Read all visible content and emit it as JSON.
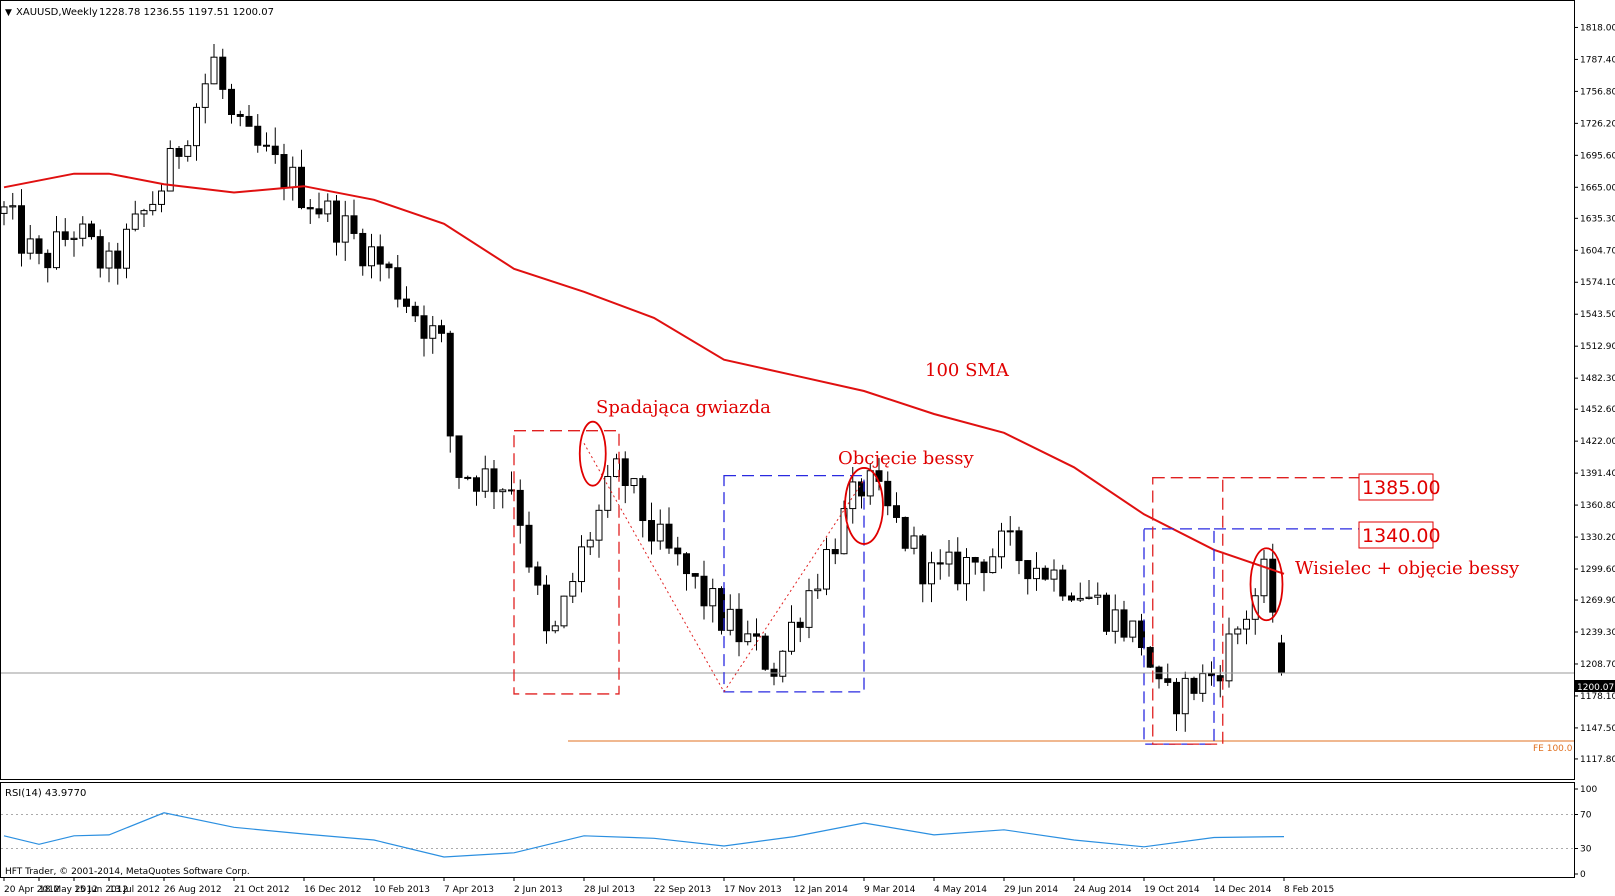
{
  "window": {
    "symbol_header": "XAUUSD,Weekly",
    "ohlc_header": "1228.78 1236.55 1197.51 1200.07",
    "close_marker_label": "1200.07",
    "copyright": "HFT Trader, © 2001-2014, MetaQuotes Software Corp."
  },
  "colors": {
    "sma": "#e01010",
    "annotation": "#e00000",
    "fib_line": "#e07020",
    "blue_dash": "#2a2ae0",
    "red_dash": "#e02020",
    "rsi_line": "#2b8fe0",
    "level_box_border": "#e00000"
  },
  "chart_data": [
    {
      "type": "candlestick",
      "title": "XAUUSD,Weekly",
      "y_ticks": [
        "1818.00",
        "1787.40",
        "1756.80",
        "1726.20",
        "1695.60",
        "1665.00",
        "1635.30",
        "1604.70",
        "1574.10",
        "1543.50",
        "1512.90",
        "1482.30",
        "1452.60",
        "1422.00",
        "1391.40",
        "1360.80",
        "1330.20",
        "1299.60",
        "1269.90",
        "1239.30",
        "1208.70",
        "1178.10",
        "1147.50",
        "1117.80"
      ],
      "ylim": [
        1112,
        1828
      ],
      "x_ticks": [
        "20 Apr 2012",
        "18 May 2012",
        "15 Jun 2012",
        "13 Jul 2012",
        "26 Aug 2012",
        "21 Oct 2012",
        "16 Dec 2012",
        "10 Feb 2013",
        "7 Apr 2013",
        "2 Jun 2013",
        "28 Jul 2013",
        "22 Sep 2013",
        "17 Nov 2013",
        "12 Jan 2014",
        "9 Mar 2014",
        "4 May 2014",
        "29 Jun 2014",
        "24 Aug 2014",
        "19 Oct 2014",
        "14 Dec 2014",
        "8 Feb 2015"
      ],
      "grid": false,
      "bar_period": "weekly",
      "key_closes": [
        {
          "date": "20 Apr 2012",
          "close": 1640
        },
        {
          "date": "18 May 2012",
          "close": 1590
        },
        {
          "date": "15 Jun 2012",
          "close": 1625
        },
        {
          "date": "13 Jul 2012",
          "close": 1585
        },
        {
          "date": "26 Aug 2012",
          "close": 1670
        },
        {
          "date": "5 Oct 2012",
          "close": 1785
        },
        {
          "date": "21 Oct 2012",
          "close": 1720
        },
        {
          "date": "16 Dec 2012",
          "close": 1660
        },
        {
          "date": "10 Feb 2013",
          "close": 1600
        },
        {
          "date": "7 Apr 2013",
          "close": 1510
        },
        {
          "date": "14 Apr 2013",
          "close": 1395
        },
        {
          "date": "2 Jun 2013",
          "close": 1380
        },
        {
          "date": "30 Jun 2013",
          "close": 1220
        },
        {
          "date": "28 Jul 2013",
          "close": 1320
        },
        {
          "date": "25 Aug 2013",
          "close": 1395
        },
        {
          "date": "22 Sep 2013",
          "close": 1330
        },
        {
          "date": "17 Nov 2013",
          "close": 1250
        },
        {
          "date": "29 Dec 2013",
          "close": 1205
        },
        {
          "date": "12 Jan 2014",
          "close": 1250
        },
        {
          "date": "9 Mar 2014",
          "close": 1385
        },
        {
          "date": "4 May 2014",
          "close": 1290
        },
        {
          "date": "29 Jun 2014",
          "close": 1320
        },
        {
          "date": "24 Aug 2014",
          "close": 1285
        },
        {
          "date": "19 Oct 2014",
          "close": 1230
        },
        {
          "date": "2 Nov 2014",
          "close": 1170
        },
        {
          "date": "14 Dec 2014",
          "close": 1200
        },
        {
          "date": "25 Jan 2015",
          "close": 1295
        },
        {
          "date": "8 Feb 2015",
          "close": 1200.07
        }
      ],
      "last_bar": {
        "open": 1228.78,
        "high": 1236.55,
        "low": 1197.51,
        "close": 1200.07
      },
      "sma_100": {
        "label": "100 SMA",
        "points": [
          {
            "date": "20 Apr 2012",
            "value": 1665
          },
          {
            "date": "15 Jun 2012",
            "value": 1678
          },
          {
            "date": "13 Jul 2012",
            "value": 1678
          },
          {
            "date": "26 Aug 2012",
            "value": 1668
          },
          {
            "date": "21 Oct 2012",
            "value": 1660
          },
          {
            "date": "16 Dec 2012",
            "value": 1666
          },
          {
            "date": "10 Feb 2013",
            "value": 1653
          },
          {
            "date": "7 Apr 2013",
            "value": 1630
          },
          {
            "date": "2 Jun 2013",
            "value": 1587
          },
          {
            "date": "28 Jul 2013",
            "value": 1565
          },
          {
            "date": "22 Sep 2013",
            "value": 1540
          },
          {
            "date": "17 Nov 2013",
            "value": 1500
          },
          {
            "date": "12 Jan 2014",
            "value": 1485
          },
          {
            "date": "9 Mar 2014",
            "value": 1470
          },
          {
            "date": "4 May 2014",
            "value": 1448
          },
          {
            "date": "29 Jun 2014",
            "value": 1430
          },
          {
            "date": "24 Aug 2014",
            "value": 1397
          },
          {
            "date": "19 Oct 2014",
            "value": 1352
          },
          {
            "date": "14 Dec 2014",
            "value": 1318
          },
          {
            "date": "8 Feb 2015",
            "value": 1295
          }
        ]
      },
      "horizontal_line": {
        "label": "FE 100.0",
        "value": 1135
      },
      "level_labels": [
        "1385.00",
        "1340.00"
      ],
      "annotations": [
        {
          "text": "Spadająca gwiazda"
        },
        {
          "text": "Obcjęcie bessy"
        },
        {
          "text": "100 SMA"
        },
        {
          "text": "Wisielec + objęcie bessy"
        }
      ]
    },
    {
      "type": "line",
      "title": "RSI(14) 43.9770",
      "y_ticks": [
        "100",
        "70",
        "30",
        "0"
      ],
      "ylim": [
        0,
        100
      ],
      "levels": [
        70,
        30
      ],
      "series": [
        {
          "name": "RSI(14)",
          "values": [
            {
              "date": "20 Apr 2012",
              "value": 45
            },
            {
              "date": "18 May 2012",
              "value": 35
            },
            {
              "date": "15 Jun 2012",
              "value": 45
            },
            {
              "date": "13 Jul 2012",
              "value": 46
            },
            {
              "date": "26 Aug 2012",
              "value": 72
            },
            {
              "date": "21 Oct 2012",
              "value": 55
            },
            {
              "date": "16 Dec 2012",
              "value": 47
            },
            {
              "date": "10 Feb 2013",
              "value": 40
            },
            {
              "date": "7 Apr 2013",
              "value": 20
            },
            {
              "date": "2 Jun 2013",
              "value": 25
            },
            {
              "date": "28 Jul 2013",
              "value": 45
            },
            {
              "date": "22 Sep 2013",
              "value": 42
            },
            {
              "date": "17 Nov 2013",
              "value": 33
            },
            {
              "date": "12 Jan 2014",
              "value": 44
            },
            {
              "date": "9 Mar 2014",
              "value": 60
            },
            {
              "date": "4 May 2014",
              "value": 46
            },
            {
              "date": "29 Jun 2014",
              "value": 52
            },
            {
              "date": "24 Aug 2014",
              "value": 40
            },
            {
              "date": "19 Oct 2014",
              "value": 32
            },
            {
              "date": "14 Dec 2014",
              "value": 43
            },
            {
              "date": "8 Feb 2015",
              "value": 43.977
            }
          ]
        }
      ]
    }
  ]
}
